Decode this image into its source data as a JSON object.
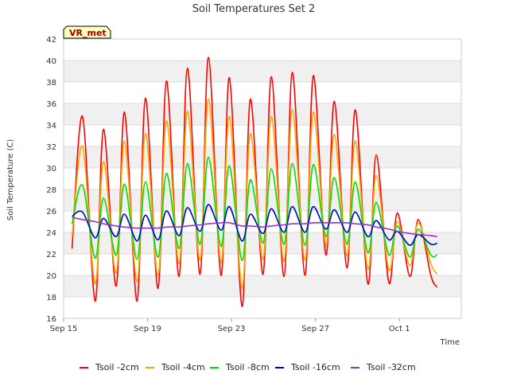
{
  "chart_data": {
    "type": "line",
    "title": "Soil Temperatures Set 2",
    "xlabel": "Time",
    "ylabel": "Soil Temperature (C)",
    "badge": "VR_met",
    "xlim": [
      "Sep 15",
      "Oct 4"
    ],
    "ylim": [
      16,
      42
    ],
    "yticks": [
      16,
      18,
      20,
      22,
      24,
      26,
      28,
      30,
      32,
      34,
      36,
      38,
      40,
      42
    ],
    "xticks": [
      "Sep 15",
      "Sep 19",
      "Sep 23",
      "Sep 27",
      "Oct 1"
    ],
    "x_start_label": "Sep 15",
    "x_end": 17.8,
    "grid": true,
    "background_bands": "alternating light gray",
    "legend_position": "bottom",
    "x": [
      0.4,
      0.9,
      1.5,
      1.9,
      2.5,
      2.9,
      3.5,
      3.9,
      4.5,
      4.9,
      5.5,
      5.9,
      6.5,
      6.9,
      7.5,
      7.9,
      8.5,
      8.9,
      9.5,
      9.9,
      10.5,
      10.9,
      11.5,
      11.9,
      12.5,
      12.9,
      13.5,
      13.9,
      14.5,
      14.9,
      15.5,
      15.9,
      16.5,
      16.9,
      17.5,
      17.8
    ],
    "series": [
      {
        "name": "Tsoil -2cm",
        "color": "#ff0000",
        "values": [
          22.5,
          34.8,
          17.6,
          33.6,
          19.0,
          35.2,
          17.6,
          36.5,
          18.8,
          38.1,
          19.9,
          39.3,
          20.1,
          40.3,
          20.0,
          38.4,
          17.1,
          36.4,
          20.1,
          38.5,
          19.9,
          38.9,
          20.0,
          38.6,
          21.9,
          36.2,
          20.7,
          35.4,
          19.2,
          31.2,
          19.3,
          25.8,
          19.9,
          25.2,
          20.0,
          18.9
        ]
      },
      {
        "name": "Tsoil -4cm",
        "color": "#ffa500",
        "values": [
          23.6,
          32.0,
          19.2,
          30.6,
          20.2,
          32.5,
          19.4,
          33.2,
          20.0,
          34.4,
          21.1,
          35.3,
          21.4,
          36.4,
          21.2,
          34.8,
          18.8,
          33.2,
          21.5,
          34.8,
          21.3,
          35.4,
          21.4,
          35.2,
          22.8,
          33.1,
          21.8,
          32.5,
          20.6,
          29.3,
          20.5,
          25.0,
          20.9,
          24.9,
          21.1,
          20.1
        ]
      },
      {
        "name": "Tsoil -8cm",
        "color": "#00dd00",
        "values": [
          24.8,
          28.4,
          21.6,
          27.2,
          21.9,
          28.5,
          21.5,
          28.7,
          21.7,
          29.5,
          22.5,
          30.4,
          22.9,
          31.0,
          22.7,
          30.2,
          21.4,
          28.9,
          23.0,
          29.9,
          22.9,
          30.4,
          22.8,
          30.3,
          23.6,
          29.1,
          22.9,
          28.7,
          22.1,
          26.8,
          21.9,
          24.6,
          21.7,
          24.3,
          21.9,
          21.9
        ]
      },
      {
        "name": "Tsoil -16cm",
        "color": "#0000cc",
        "values": [
          25.5,
          25.9,
          23.5,
          25.3,
          23.6,
          25.7,
          23.2,
          25.6,
          23.3,
          26.0,
          23.7,
          26.3,
          24.1,
          26.6,
          24.2,
          26.4,
          23.2,
          25.7,
          23.9,
          26.2,
          24.0,
          26.4,
          24.0,
          26.4,
          24.3,
          26.1,
          24.0,
          25.9,
          23.6,
          25.1,
          23.3,
          24.1,
          22.8,
          23.8,
          22.9,
          23.0
        ]
      },
      {
        "name": "Tsoil -32cm",
        "color": "#9932cc",
        "values": [
          25.4,
          25.2,
          25.0,
          24.8,
          24.6,
          24.5,
          24.4,
          24.4,
          24.4,
          24.5,
          24.5,
          24.6,
          24.7,
          24.8,
          24.9,
          24.9,
          24.6,
          24.6,
          24.5,
          24.6,
          24.7,
          24.8,
          24.8,
          24.9,
          24.9,
          24.9,
          24.9,
          24.8,
          24.7,
          24.5,
          24.3,
          24.1,
          23.9,
          23.8,
          23.7,
          23.6
        ]
      }
    ]
  }
}
